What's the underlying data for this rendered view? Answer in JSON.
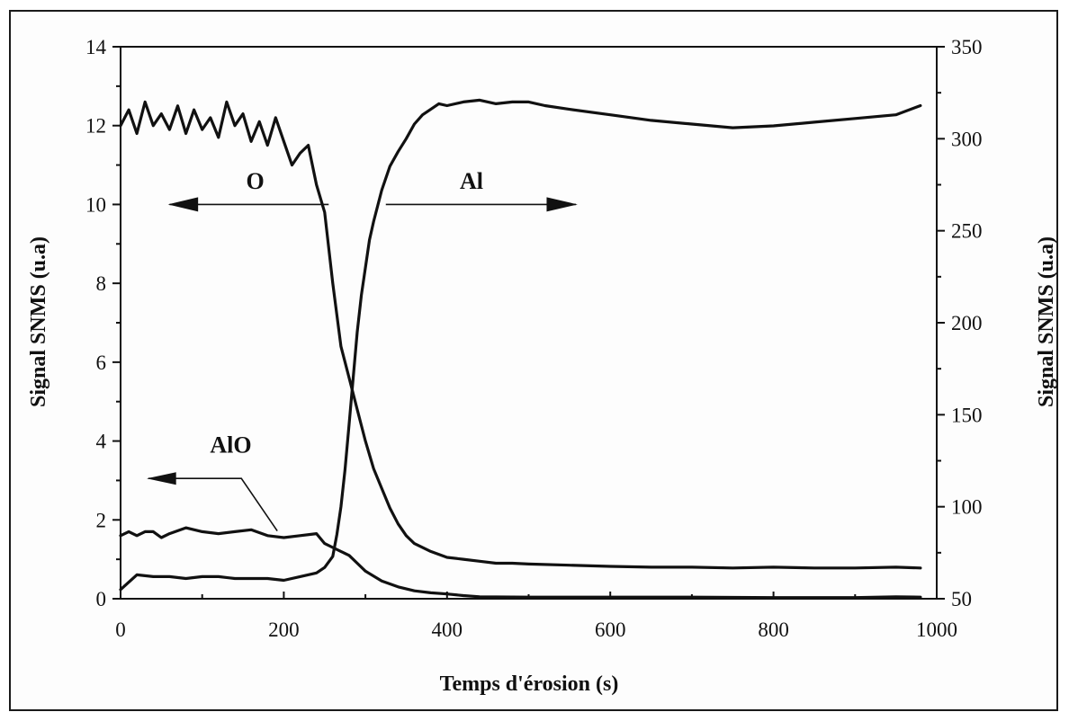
{
  "chart_data": {
    "type": "line",
    "xlabel": "Temps d'érosion (s)",
    "ylabel_left": "Signal SNMS (u.a)",
    "ylabel_right": "Signal SNMS (u.a)",
    "xlim": [
      0,
      1000
    ],
    "ylim_left": [
      0,
      14
    ],
    "ylim_right": [
      50,
      350
    ],
    "x_ticks": [
      "0",
      "200",
      "400",
      "600",
      "800",
      "1000"
    ],
    "y_ticks_left": [
      "0",
      "2",
      "4",
      "6",
      "8",
      "10",
      "12",
      "14"
    ],
    "y_ticks_right": [
      "50",
      "100",
      "150",
      "200",
      "250",
      "300",
      "350"
    ],
    "grid": false,
    "annotations": [
      {
        "text": "O",
        "points_to": "left axis"
      },
      {
        "text": "Al",
        "points_to": "right axis"
      },
      {
        "text": "AlO",
        "points_to": "left axis"
      }
    ],
    "series": [
      {
        "label": "O",
        "axis": "left",
        "x": [
          0,
          10,
          20,
          30,
          40,
          50,
          60,
          70,
          80,
          90,
          100,
          110,
          120,
          130,
          140,
          150,
          160,
          170,
          180,
          190,
          200,
          210,
          220,
          230,
          240,
          250,
          260,
          270,
          280,
          290,
          300,
          310,
          320,
          330,
          340,
          350,
          360,
          380,
          400,
          420,
          440,
          460,
          480,
          500,
          550,
          600,
          650,
          700,
          750,
          800,
          850,
          900,
          950,
          980
        ],
        "y": [
          12.0,
          12.4,
          11.8,
          12.6,
          12.0,
          12.3,
          11.9,
          12.5,
          11.8,
          12.4,
          11.9,
          12.2,
          11.7,
          12.6,
          12.0,
          12.3,
          11.6,
          12.1,
          11.5,
          12.2,
          11.6,
          11.0,
          11.3,
          11.5,
          10.5,
          9.8,
          8.0,
          6.4,
          5.6,
          4.8,
          4.0,
          3.3,
          2.8,
          2.3,
          1.9,
          1.6,
          1.4,
          1.2,
          1.05,
          1.0,
          0.95,
          0.9,
          0.9,
          0.88,
          0.85,
          0.82,
          0.8,
          0.8,
          0.78,
          0.8,
          0.78,
          0.78,
          0.8,
          0.78
        ]
      },
      {
        "label": "Al",
        "axis": "right",
        "x": [
          0,
          20,
          40,
          60,
          80,
          100,
          120,
          140,
          160,
          180,
          200,
          220,
          240,
          250,
          260,
          265,
          270,
          275,
          280,
          285,
          290,
          295,
          300,
          305,
          310,
          320,
          330,
          340,
          350,
          360,
          370,
          380,
          390,
          400,
          420,
          440,
          460,
          480,
          500,
          520,
          550,
          600,
          650,
          700,
          750,
          800,
          850,
          900,
          950,
          980
        ],
        "y": [
          55,
          63,
          62,
          62,
          61,
          62,
          62,
          61,
          61,
          61,
          60,
          62,
          64,
          67,
          73,
          85,
          100,
          120,
          145,
          170,
          195,
          215,
          230,
          245,
          255,
          272,
          285,
          293,
          300,
          308,
          313,
          316,
          319,
          318,
          320,
          321,
          319,
          320,
          320,
          318,
          316,
          313,
          310,
          308,
          306,
          307,
          309,
          311,
          313,
          318
        ]
      },
      {
        "label": "AlO",
        "axis": "left",
        "x": [
          0,
          10,
          20,
          30,
          40,
          50,
          60,
          80,
          100,
          120,
          140,
          160,
          180,
          200,
          220,
          240,
          250,
          260,
          270,
          280,
          290,
          300,
          320,
          340,
          360,
          380,
          400,
          420,
          440,
          500,
          600,
          700,
          800,
          900,
          950,
          980
        ],
        "y": [
          1.6,
          1.7,
          1.6,
          1.7,
          1.7,
          1.55,
          1.65,
          1.8,
          1.7,
          1.65,
          1.7,
          1.75,
          1.6,
          1.55,
          1.6,
          1.65,
          1.4,
          1.3,
          1.2,
          1.1,
          0.9,
          0.7,
          0.45,
          0.3,
          0.2,
          0.15,
          0.12,
          0.08,
          0.05,
          0.04,
          0.04,
          0.04,
          0.03,
          0.03,
          0.05,
          0.04
        ]
      }
    ]
  }
}
